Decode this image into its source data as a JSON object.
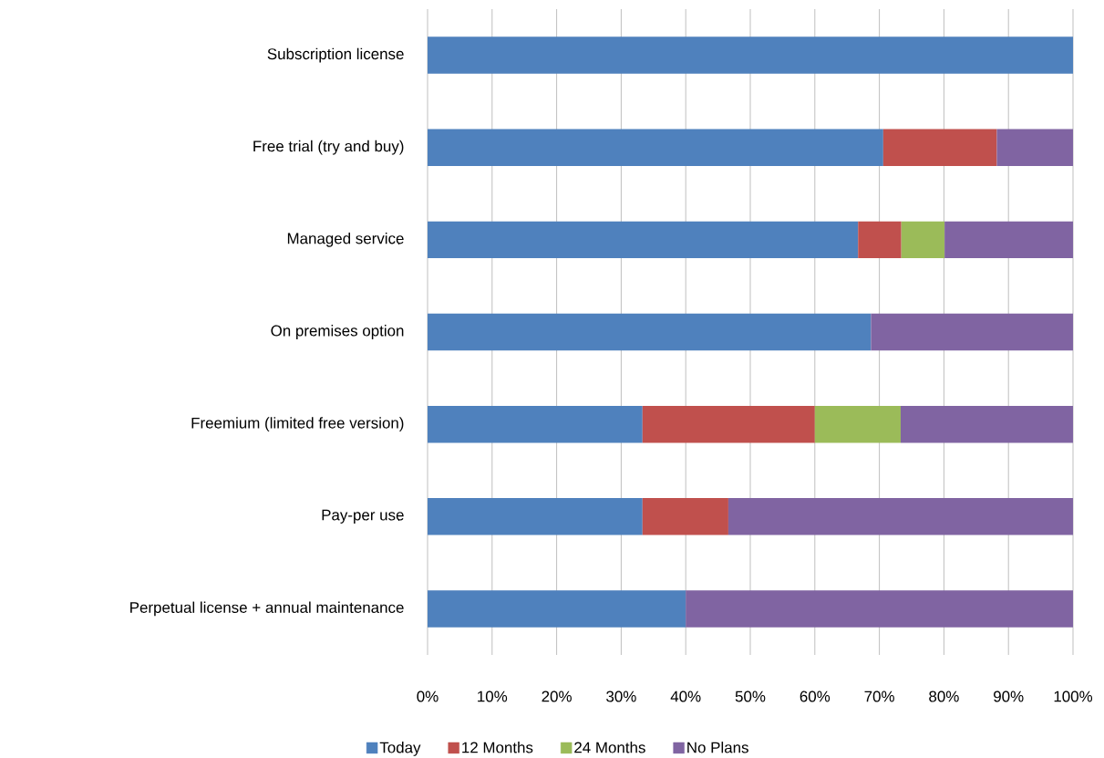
{
  "chart_data": {
    "type": "bar",
    "orientation": "horizontal",
    "stacked": true,
    "categories": [
      "Subscription license",
      "Free trial (try and buy)",
      "Managed service",
      "On premises option",
      "Freemium (limited free version)",
      "Pay-per use",
      "Perpetual license + annual maintenance"
    ],
    "series": [
      {
        "name": "Today",
        "color": "#4f81bd",
        "values": [
          100,
          70.6,
          66.7,
          68.7,
          33.3,
          33.3,
          40
        ]
      },
      {
        "name": "12 Months",
        "color": "#c0504d",
        "values": [
          0,
          17.6,
          6.7,
          0,
          26.7,
          13.3,
          0
        ]
      },
      {
        "name": "24 Months",
        "color": "#9bbb59",
        "values": [
          0,
          0,
          6.7,
          0,
          13.3,
          0,
          0
        ]
      },
      {
        "name": "No Plans",
        "color": "#8064a2",
        "values": [
          0,
          11.8,
          19.9,
          31.3,
          26.7,
          53.4,
          60
        ]
      }
    ],
    "xlim": [
      0,
      100
    ],
    "xticks": [
      {
        "value": 0,
        "label": "0%"
      },
      {
        "value": 10,
        "label": "10%"
      },
      {
        "value": 20,
        "label": "20%"
      },
      {
        "value": 30,
        "label": "30%"
      },
      {
        "value": 40,
        "label": "40%"
      },
      {
        "value": 50,
        "label": "50%"
      },
      {
        "value": 60,
        "label": "60%"
      },
      {
        "value": 70,
        "label": "70%"
      },
      {
        "value": 80,
        "label": "80%"
      },
      {
        "value": 90,
        "label": "90%"
      },
      {
        "value": 100,
        "label": "100%"
      }
    ],
    "grid": "x",
    "legend": "bottom"
  }
}
